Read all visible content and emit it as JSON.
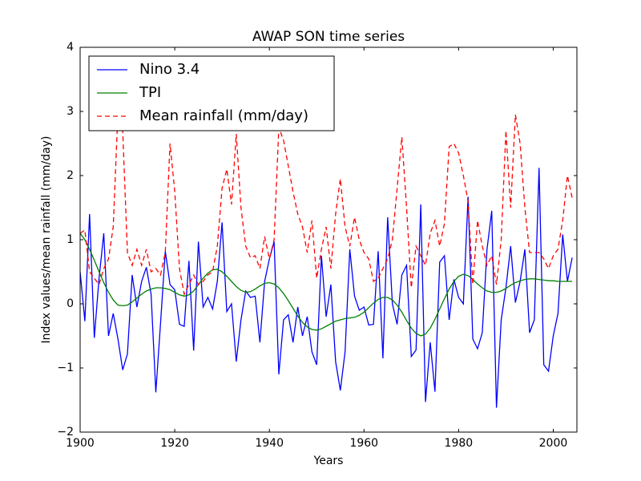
{
  "chart_data": {
    "type": "line",
    "title": "AWAP SON time series",
    "x_label": "Years",
    "y_label": "Index values/mean rainfall (mm/day)",
    "x": [
      1900,
      1901,
      1902,
      1903,
      1904,
      1905,
      1906,
      1907,
      1908,
      1909,
      1910,
      1911,
      1912,
      1913,
      1914,
      1915,
      1916,
      1917,
      1918,
      1919,
      1920,
      1921,
      1922,
      1923,
      1924,
      1925,
      1926,
      1927,
      1928,
      1929,
      1930,
      1931,
      1932,
      1933,
      1934,
      1935,
      1936,
      1937,
      1938,
      1939,
      1940,
      1941,
      1942,
      1943,
      1944,
      1945,
      1946,
      1947,
      1948,
      1949,
      1950,
      1951,
      1952,
      1953,
      1954,
      1955,
      1956,
      1957,
      1958,
      1959,
      1960,
      1961,
      1962,
      1963,
      1964,
      1965,
      1966,
      1967,
      1968,
      1969,
      1970,
      1971,
      1972,
      1973,
      1974,
      1975,
      1976,
      1977,
      1978,
      1979,
      1980,
      1981,
      1982,
      1983,
      1984,
      1985,
      1986,
      1987,
      1988,
      1989,
      1990,
      1991,
      1992,
      1993,
      1994,
      1995,
      1996,
      1997,
      1998,
      1999,
      2000,
      2001,
      2002,
      2003,
      2004
    ],
    "series": [
      {
        "name": "Nino 3.4",
        "color": "#0000ff",
        "linestyle": "solid",
        "values": [
          0.5,
          -0.27,
          1.4,
          -0.53,
          0.4,
          1.1,
          -0.5,
          -0.15,
          -0.55,
          -1.03,
          -0.78,
          0.45,
          -0.05,
          0.35,
          0.57,
          0.15,
          -1.38,
          -0.3,
          0.82,
          0.3,
          0.22,
          -0.32,
          -0.35,
          0.67,
          -0.73,
          0.97,
          -0.05,
          0.1,
          -0.08,
          0.35,
          1.27,
          -0.12,
          0.0,
          -0.9,
          -0.25,
          0.2,
          0.1,
          0.12,
          -0.6,
          0.35,
          0.7,
          0.97,
          -1.1,
          -0.25,
          -0.17,
          -0.6,
          -0.05,
          -0.5,
          -0.2,
          -0.75,
          -0.95,
          0.75,
          -0.2,
          0.3,
          -0.9,
          -1.35,
          -0.75,
          0.85,
          0.12,
          -0.1,
          -0.05,
          -0.33,
          -0.32,
          0.82,
          -0.85,
          1.35,
          0.0,
          -0.32,
          0.45,
          0.6,
          -0.82,
          -0.72,
          1.55,
          -1.53,
          -0.6,
          -1.37,
          0.65,
          0.75,
          -0.25,
          0.38,
          0.1,
          0.0,
          1.67,
          -0.55,
          -0.7,
          -0.45,
          0.85,
          1.45,
          -1.62,
          -0.25,
          0.25,
          0.9,
          0.02,
          0.35,
          0.85,
          -0.45,
          -0.25,
          2.12,
          -0.95,
          -1.05,
          -0.5,
          -0.15,
          1.08,
          0.35,
          0.72
        ]
      },
      {
        "name": "TPI",
        "color": "#008000",
        "linestyle": "solid",
        "values": [
          1.1,
          1.0,
          0.85,
          0.68,
          0.5,
          0.33,
          0.18,
          0.06,
          -0.02,
          -0.03,
          -0.02,
          0.03,
          0.09,
          0.15,
          0.2,
          0.23,
          0.25,
          0.25,
          0.24,
          0.22,
          0.18,
          0.14,
          0.12,
          0.14,
          0.2,
          0.3,
          0.4,
          0.48,
          0.53,
          0.54,
          0.5,
          0.43,
          0.35,
          0.27,
          0.21,
          0.18,
          0.19,
          0.23,
          0.28,
          0.32,
          0.33,
          0.31,
          0.25,
          0.16,
          0.05,
          -0.07,
          -0.19,
          -0.29,
          -0.36,
          -0.4,
          -0.41,
          -0.39,
          -0.35,
          -0.31,
          -0.27,
          -0.25,
          -0.23,
          -0.22,
          -0.21,
          -0.18,
          -0.13,
          -0.06,
          0.01,
          0.07,
          0.1,
          0.1,
          0.06,
          -0.02,
          -0.13,
          -0.26,
          -0.38,
          -0.46,
          -0.5,
          -0.47,
          -0.38,
          -0.24,
          -0.08,
          0.08,
          0.23,
          0.35,
          0.43,
          0.46,
          0.44,
          0.38,
          0.31,
          0.25,
          0.2,
          0.18,
          0.18,
          0.2,
          0.24,
          0.29,
          0.33,
          0.36,
          0.38,
          0.39,
          0.39,
          0.38,
          0.37,
          0.36,
          0.36,
          0.35,
          0.35,
          0.35,
          0.35
        ]
      },
      {
        "name": "Mean rainfall (mm/day)",
        "color": "#ff0000",
        "linestyle": "dashed",
        "values": [
          1.1,
          1.15,
          0.5,
          0.4,
          0.3,
          0.55,
          0.7,
          1.2,
          3.0,
          2.7,
          0.8,
          0.6,
          0.85,
          0.6,
          0.85,
          0.5,
          0.55,
          0.45,
          0.8,
          2.5,
          1.75,
          0.55,
          0.15,
          0.3,
          0.45,
          0.3,
          0.35,
          0.45,
          0.5,
          0.9,
          1.8,
          2.1,
          1.55,
          2.65,
          1.5,
          0.9,
          0.72,
          0.75,
          0.55,
          1.05,
          0.7,
          1.0,
          2.75,
          2.55,
          2.15,
          1.75,
          1.4,
          1.2,
          0.8,
          1.3,
          0.4,
          0.85,
          1.2,
          0.55,
          1.4,
          1.95,
          1.2,
          0.9,
          1.35,
          1.0,
          0.8,
          0.7,
          0.35,
          0.4,
          0.55,
          0.7,
          1.0,
          1.8,
          2.6,
          1.5,
          0.25,
          0.9,
          0.75,
          0.6,
          1.1,
          1.3,
          0.9,
          1.25,
          2.45,
          2.5,
          2.35,
          2.0,
          1.6,
          0.3,
          1.3,
          0.9,
          0.6,
          0.75,
          0.3,
          1.0,
          2.7,
          1.5,
          2.95,
          2.5,
          1.5,
          0.8,
          0.8,
          0.8,
          0.7,
          0.55,
          0.75,
          0.85,
          1.3,
          2.0,
          1.65
        ]
      }
    ],
    "xlim": [
      1900,
      2005
    ],
    "xticks": [
      1900,
      1920,
      1940,
      1960,
      1980,
      2000
    ],
    "ylim": [
      -2,
      4
    ],
    "yticks": [
      {
        "value": -2,
        "label": "−2"
      },
      {
        "value": -1,
        "label": "−1"
      },
      0,
      1,
      2,
      3,
      4
    ],
    "grid": false,
    "legend": "upper left"
  }
}
